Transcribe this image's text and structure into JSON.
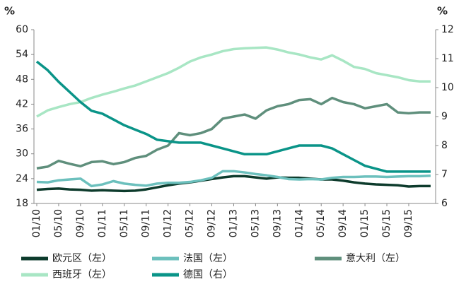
{
  "chart_data": {
    "type": "line",
    "ylabel": "%",
    "y2label": "%",
    "categories": [
      "01/10",
      null,
      "05/10",
      null,
      "09/10",
      null,
      "01/11",
      null,
      "05/11",
      null,
      "09/11",
      null,
      "01/12",
      null,
      "05/12",
      null,
      "09/12",
      null,
      "01/13",
      null,
      "05/13",
      null,
      "09/13",
      null,
      "01/14",
      null,
      "05/14",
      null,
      "09/14",
      null,
      "01/15",
      null,
      "05/15",
      null,
      "09/15",
      null,
      null
    ],
    "ylim": [
      18,
      60
    ],
    "yticks": [
      18,
      24,
      30,
      36,
      42,
      48,
      54,
      60
    ],
    "y2lim": [
      6,
      12
    ],
    "y2ticks": [
      6,
      7,
      8,
      9,
      10,
      11,
      12
    ],
    "legend": "bottom",
    "series": [
      {
        "name": "欧元区（左）",
        "color": "#0d3b2c",
        "values": [
          21.3,
          21.5,
          21.6,
          21.4,
          21.3,
          21.1,
          21.2,
          21.1,
          21.0,
          21.1,
          21.4,
          21.9,
          22.4,
          22.8,
          23.1,
          23.5,
          23.9,
          24.3,
          24.6,
          24.6,
          24.3,
          24.0,
          24.3,
          24.2,
          24.2,
          24.0,
          23.8,
          23.8,
          23.5,
          23.1,
          22.8,
          22.6,
          22.5,
          22.4,
          22.1,
          22.2,
          22.2
        ]
      },
      {
        "name": "法国（左）",
        "color": "#6cc0bd",
        "values": [
          23.2,
          23.1,
          23.6,
          23.8,
          24.0,
          22.2,
          22.6,
          23.4,
          22.8,
          22.5,
          22.3,
          22.8,
          23.0,
          23.0,
          23.2,
          23.6,
          24.2,
          25.8,
          25.8,
          25.5,
          25.1,
          24.8,
          24.4,
          23.9,
          23.8,
          23.9,
          23.8,
          24.2,
          24.4,
          24.4,
          24.5,
          24.5,
          24.4,
          24.5,
          24.6,
          24.6,
          24.7
        ]
      },
      {
        "name": "意大利（左）",
        "color": "#5f8f7c",
        "values": [
          26.5,
          26.9,
          28.3,
          27.6,
          27.0,
          28.0,
          28.2,
          27.5,
          28.0,
          29.0,
          29.5,
          31.0,
          32.0,
          35.0,
          34.5,
          35.0,
          36.0,
          38.5,
          39.0,
          39.5,
          38.5,
          40.5,
          41.5,
          42.0,
          43.0,
          43.2,
          42.0,
          43.5,
          42.5,
          42.0,
          41.0,
          41.5,
          42.0,
          40.0,
          39.8,
          40.0,
          40.0
        ]
      },
      {
        "name": "西班牙（左）",
        "color": "#a8e6c4",
        "values": [
          39.0,
          40.5,
          41.3,
          42.0,
          42.5,
          43.5,
          44.3,
          45.0,
          45.8,
          46.5,
          47.5,
          48.5,
          49.5,
          50.8,
          52.3,
          53.3,
          54.0,
          54.8,
          55.3,
          55.5,
          55.6,
          55.7,
          55.2,
          54.5,
          54.0,
          53.3,
          52.8,
          53.8,
          52.5,
          51.0,
          50.5,
          49.5,
          49.0,
          48.5,
          47.8,
          47.5,
          47.5
        ]
      },
      {
        "name": "德国（右）",
        "color": "#0a9488",
        "axis": "y2",
        "values": [
          10.9,
          10.6,
          10.2,
          9.85,
          9.5,
          9.2,
          9.1,
          8.9,
          8.7,
          8.55,
          8.4,
          8.2,
          8.15,
          8.1,
          8.1,
          8.1,
          8.0,
          7.9,
          7.8,
          7.7,
          7.7,
          7.7,
          7.8,
          7.9,
          8.0,
          8.0,
          8.0,
          7.9,
          7.7,
          7.5,
          7.3,
          7.2,
          7.1,
          7.1,
          7.1,
          7.1,
          7.1
        ]
      }
    ]
  }
}
